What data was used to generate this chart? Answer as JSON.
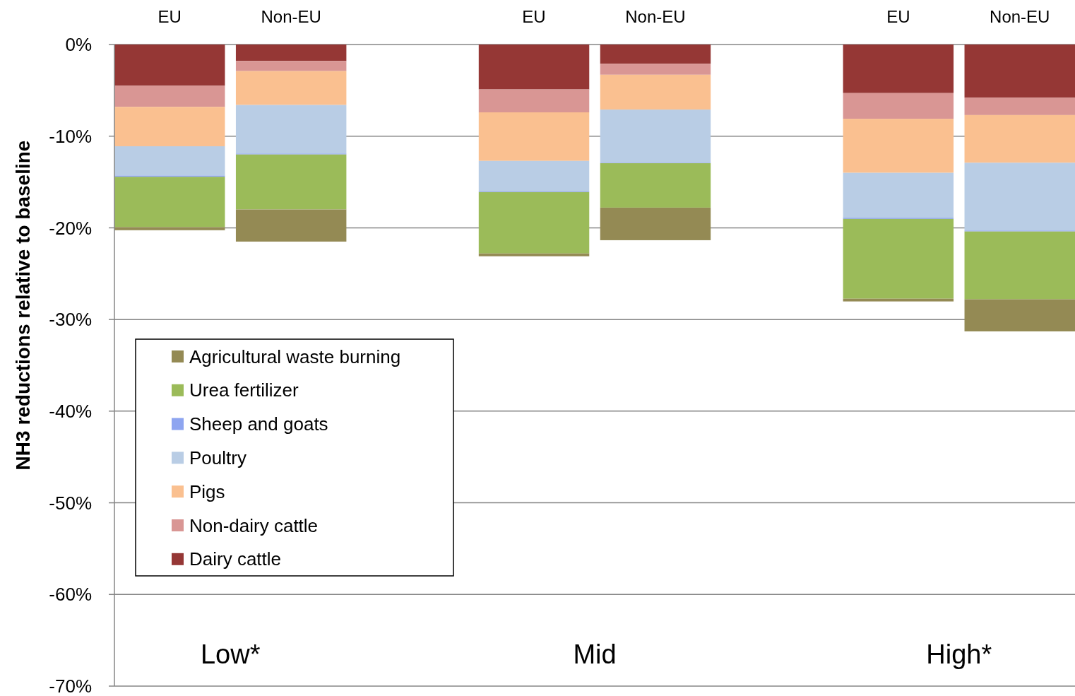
{
  "chart_data": {
    "type": "bar",
    "stacked": true,
    "ylabel": "NH3 reductions relative to baseline",
    "categories": [
      "EU",
      "Non-EU",
      null,
      "EU",
      "Non-EU",
      null,
      "EU",
      "Non-EU"
    ],
    "series": [
      {
        "name": "Dairy cattle",
        "color": "#953735",
        "values": [
          -4.5,
          -1.8,
          null,
          -4.9,
          -2.1,
          null,
          -5.3,
          -5.8
        ]
      },
      {
        "name": "Non-dairy cattle",
        "color": "#d99694",
        "values": [
          -2.3,
          -1.1,
          null,
          -2.5,
          -1.2,
          null,
          -2.8,
          -1.9
        ]
      },
      {
        "name": "Pigs",
        "color": "#fac090",
        "values": [
          -4.3,
          -3.7,
          null,
          -5.3,
          -3.8,
          null,
          -5.9,
          -5.2
        ]
      },
      {
        "name": "Poultry",
        "color": "#b9cde5",
        "values": [
          -3.2,
          -5.3,
          null,
          -3.3,
          -5.8,
          null,
          -4.9,
          -7.4
        ]
      },
      {
        "name": "Sheep and goats",
        "color": "#8ea5f0",
        "values": [
          -0.13,
          -0.1,
          null,
          -0.1,
          -0.05,
          null,
          -0.13,
          -0.1
        ]
      },
      {
        "name": "Urea fertilizer",
        "color": "#9bbb59",
        "values": [
          -5.5,
          -6.0,
          null,
          -6.7,
          -4.85,
          null,
          -8.7,
          -7.4
        ]
      },
      {
        "name": "Agricultural waste burning",
        "color": "#948a54",
        "values": [
          -0.33,
          -3.5,
          null,
          -0.3,
          -3.55,
          null,
          -0.3,
          -3.5
        ]
      }
    ],
    "ylim": [
      -70,
      0
    ],
    "yticks": [
      {
        "value": 0,
        "label": "0%"
      },
      {
        "value": -10,
        "label": "-10%"
      },
      {
        "value": -20,
        "label": "-20%"
      },
      {
        "value": -30,
        "label": "-30%"
      },
      {
        "value": -40,
        "label": "-40%"
      },
      {
        "value": -50,
        "label": "-50%"
      },
      {
        "value": -60,
        "label": "-60%"
      },
      {
        "value": -70,
        "label": "-70%"
      }
    ],
    "grid": "y",
    "legend": "left",
    "annotations": [
      "Low*",
      "Mid",
      "High*"
    ]
  }
}
